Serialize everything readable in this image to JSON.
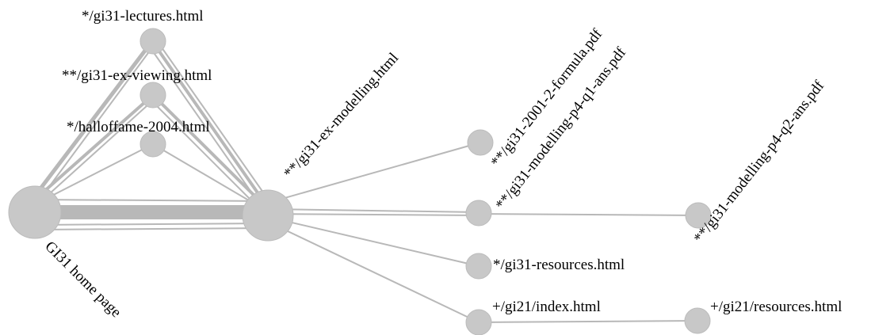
{
  "nodes": {
    "home": "GI31 home page",
    "ex_modelling": "**/gi31-ex-modelling.html",
    "lectures": "*/gi31-lectures.html",
    "ex_viewing": "**/gi31-ex-viewing.html",
    "halloffame": "*/halloffame-2004.html",
    "formula": "**/gi31-2001-2-formula.pdf",
    "p4q1": "**/gi31-modelling-p4-q1-ans.pdf",
    "p4q2": "**/gi31-modelling-p4-q2-ans.pdf",
    "resources": "*/gi31-resources.html",
    "gi21_index": "+/gi21/index.html",
    "gi21_resources": "+/gi21/resources.html"
  },
  "colors": {
    "node": "#c8c8c8",
    "edge": "#b8b8b8",
    "text": "#000000"
  }
}
